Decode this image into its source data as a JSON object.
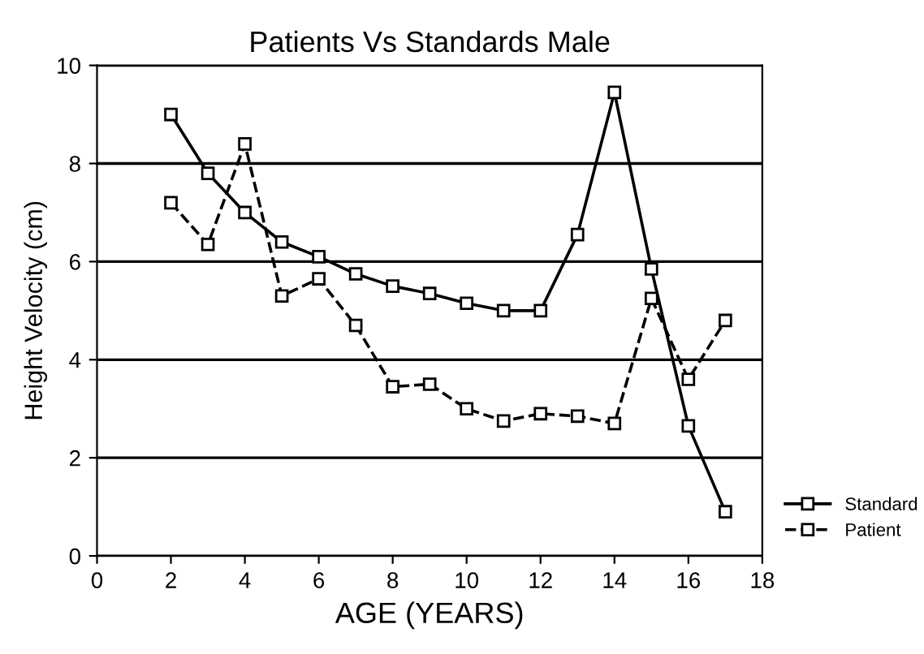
{
  "chart_data": {
    "type": "line",
    "title": "Patients Vs Standards Male",
    "xlabel": "AGE (YEARS)",
    "ylabel": "Height Velocity (cm)",
    "x": [
      2,
      3,
      4,
      5,
      6,
      7,
      8,
      9,
      10,
      11,
      12,
      13,
      14,
      15,
      16,
      17
    ],
    "series": [
      {
        "name": "Standard",
        "color": "#000000",
        "line_style": "solid",
        "values": [
          9.0,
          7.8,
          7.0,
          6.4,
          6.1,
          5.75,
          5.5,
          5.35,
          5.15,
          5.0,
          5.0,
          6.55,
          9.45,
          5.85,
          2.65,
          0.9
        ]
      },
      {
        "name": "Patient",
        "color": "#000000",
        "line_style": "dashed",
        "values": [
          7.2,
          6.35,
          8.4,
          5.3,
          5.65,
          4.7,
          3.45,
          3.5,
          3.0,
          2.75,
          2.9,
          2.85,
          2.7,
          5.25,
          3.6,
          4.8
        ]
      }
    ],
    "xlim": [
      0,
      18
    ],
    "xticks": [
      0,
      2,
      4,
      6,
      8,
      10,
      12,
      14,
      16,
      18
    ],
    "ylim": [
      0,
      10
    ],
    "yticks": [
      0,
      2,
      4,
      6,
      8,
      10
    ],
    "grid": "y",
    "legend": "bottom right",
    "marker": "square"
  }
}
